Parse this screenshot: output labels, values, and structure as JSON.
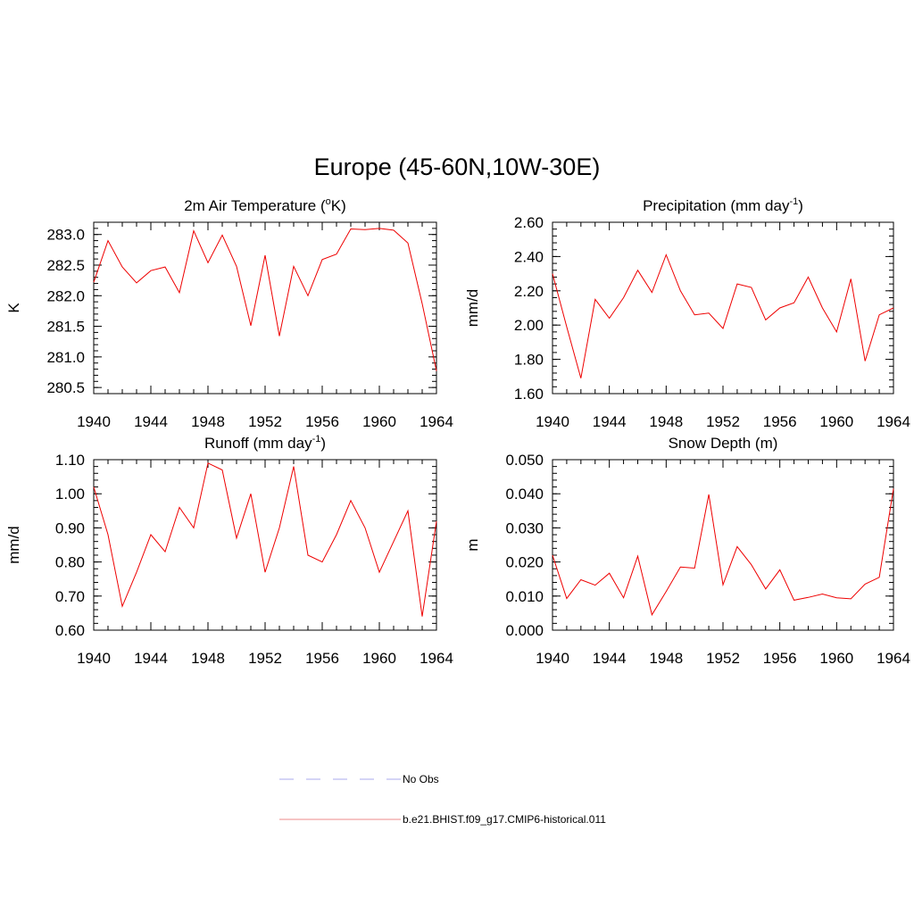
{
  "title": "Europe (45-60N,10W-30E)",
  "chart_data": [
    {
      "type": "line",
      "title": "2m Air Temperature",
      "title_unit": "K",
      "ylabel": "K",
      "x": [
        1940,
        1941,
        1942,
        1943,
        1944,
        1945,
        1946,
        1947,
        1948,
        1949,
        1950,
        1951,
        1952,
        1953,
        1954,
        1955,
        1956,
        1957,
        1958,
        1959,
        1960,
        1961,
        1962,
        1963,
        1964
      ],
      "series": [
        {
          "values": [
            282.22,
            282.9,
            282.47,
            282.21,
            282.41,
            282.47,
            282.05,
            283.06,
            282.54,
            282.99,
            282.48,
            281.51,
            282.66,
            281.34,
            282.48,
            282.0,
            282.59,
            282.68,
            283.09,
            283.08,
            283.1,
            283.07,
            282.86,
            281.87,
            280.77
          ]
        }
      ],
      "xlim": [
        1940,
        1964
      ],
      "ylim": [
        280.4,
        283.2
      ],
      "xticks": [
        1940,
        1944,
        1948,
        1952,
        1956,
        1960,
        1964
      ],
      "xtick_labels": [
        "1940",
        "1944",
        "1948",
        "1952",
        "1956",
        "1960",
        "1964"
      ],
      "yticks": [
        280.5,
        281.0,
        281.5,
        282.0,
        282.5,
        283.0
      ],
      "ytick_labels": [
        "280.5",
        "281.0",
        "281.5",
        "282.0",
        "282.5",
        "283.0"
      ],
      "y_minor_step": 0.1
    },
    {
      "type": "line",
      "title": "Precipitation (mm day",
      "title_sup": "-1",
      "title_suffix": ")",
      "ylabel": "mm/d",
      "x": [
        1940,
        1941,
        1942,
        1943,
        1944,
        1945,
        1946,
        1947,
        1948,
        1949,
        1950,
        1951,
        1952,
        1953,
        1954,
        1955,
        1956,
        1957,
        1958,
        1959,
        1960,
        1961,
        1962,
        1963,
        1964
      ],
      "series": [
        {
          "values": [
            2.3,
            1.99,
            1.69,
            2.15,
            2.04,
            2.16,
            2.32,
            2.19,
            2.41,
            2.2,
            2.06,
            2.07,
            1.98,
            2.24,
            2.22,
            2.03,
            2.1,
            2.13,
            2.28,
            2.1,
            1.96,
            2.27,
            1.79,
            2.06,
            2.1
          ]
        }
      ],
      "xlim": [
        1940,
        1964
      ],
      "ylim": [
        1.6,
        2.6
      ],
      "xticks": [
        1940,
        1944,
        1948,
        1952,
        1956,
        1960,
        1964
      ],
      "xtick_labels": [
        "1940",
        "1944",
        "1948",
        "1952",
        "1956",
        "1960",
        "1964"
      ],
      "yticks": [
        1.6,
        1.8,
        2.0,
        2.2,
        2.4,
        2.6
      ],
      "ytick_labels": [
        "1.60",
        "1.80",
        "2.00",
        "2.20",
        "2.40",
        "2.60"
      ],
      "y_minor_step": 0.04
    },
    {
      "type": "line",
      "title": "Runoff (mm day",
      "title_sup": "-1",
      "title_suffix": ")",
      "ylabel": "mm/d",
      "x": [
        1940,
        1941,
        1942,
        1943,
        1944,
        1945,
        1946,
        1947,
        1948,
        1949,
        1950,
        1951,
        1952,
        1953,
        1954,
        1955,
        1956,
        1957,
        1958,
        1959,
        1960,
        1961,
        1962,
        1963,
        1964
      ],
      "series": [
        {
          "values": [
            1.02,
            0.88,
            0.67,
            0.77,
            0.88,
            0.83,
            0.96,
            0.9,
            1.09,
            1.07,
            0.87,
            1.0,
            0.77,
            0.9,
            1.08,
            0.82,
            0.8,
            0.88,
            0.98,
            0.9,
            0.77,
            0.86,
            0.95,
            0.64,
            0.92
          ]
        }
      ],
      "xlim": [
        1940,
        1964
      ],
      "ylim": [
        0.6,
        1.1
      ],
      "xticks": [
        1940,
        1944,
        1948,
        1952,
        1956,
        1960,
        1964
      ],
      "xtick_labels": [
        "1940",
        "1944",
        "1948",
        "1952",
        "1956",
        "1960",
        "1964"
      ],
      "yticks": [
        0.6,
        0.7,
        0.8,
        0.9,
        1.0,
        1.1
      ],
      "ytick_labels": [
        "0.60",
        "0.70",
        "0.80",
        "0.90",
        "1.00",
        "1.10"
      ],
      "y_minor_step": 0.02
    },
    {
      "type": "line",
      "title": "Snow Depth (m)",
      "ylabel": "m",
      "x": [
        1940,
        1941,
        1942,
        1943,
        1944,
        1945,
        1946,
        1947,
        1948,
        1949,
        1950,
        1951,
        1952,
        1953,
        1954,
        1955,
        1956,
        1957,
        1958,
        1959,
        1960,
        1961,
        1962,
        1963,
        1964
      ],
      "series": [
        {
          "values": [
            0.022,
            0.0093,
            0.0148,
            0.0132,
            0.0167,
            0.0095,
            0.0217,
            0.0045,
            0.0113,
            0.0185,
            0.0182,
            0.0398,
            0.0133,
            0.0245,
            0.0192,
            0.0121,
            0.0177,
            0.0088,
            0.0096,
            0.0106,
            0.0095,
            0.0092,
            0.0135,
            0.0155,
            0.0415
          ]
        }
      ],
      "xlim": [
        1940,
        1964
      ],
      "ylim": [
        0.0,
        0.05
      ],
      "xticks": [
        1940,
        1944,
        1948,
        1952,
        1956,
        1960,
        1964
      ],
      "xtick_labels": [
        "1940",
        "1944",
        "1948",
        "1952",
        "1956",
        "1960",
        "1964"
      ],
      "yticks": [
        0.0,
        0.01,
        0.02,
        0.03,
        0.04,
        0.05
      ],
      "ytick_labels": [
        "0.000",
        "0.010",
        "0.020",
        "0.030",
        "0.040",
        "0.050"
      ],
      "y_minor_step": 0.002
    }
  ],
  "legend": {
    "placement": "bottom-center",
    "items": [
      {
        "label": "No Obs",
        "style": "dashed",
        "color": "#aaaaee"
      },
      {
        "label": "b.e21.BHIST.f09_g17.CMIP6-historical.011",
        "style": "solid",
        "color": "#ee8888"
      }
    ]
  },
  "colors": {
    "series": "#ee0000",
    "axes": "#000000"
  }
}
